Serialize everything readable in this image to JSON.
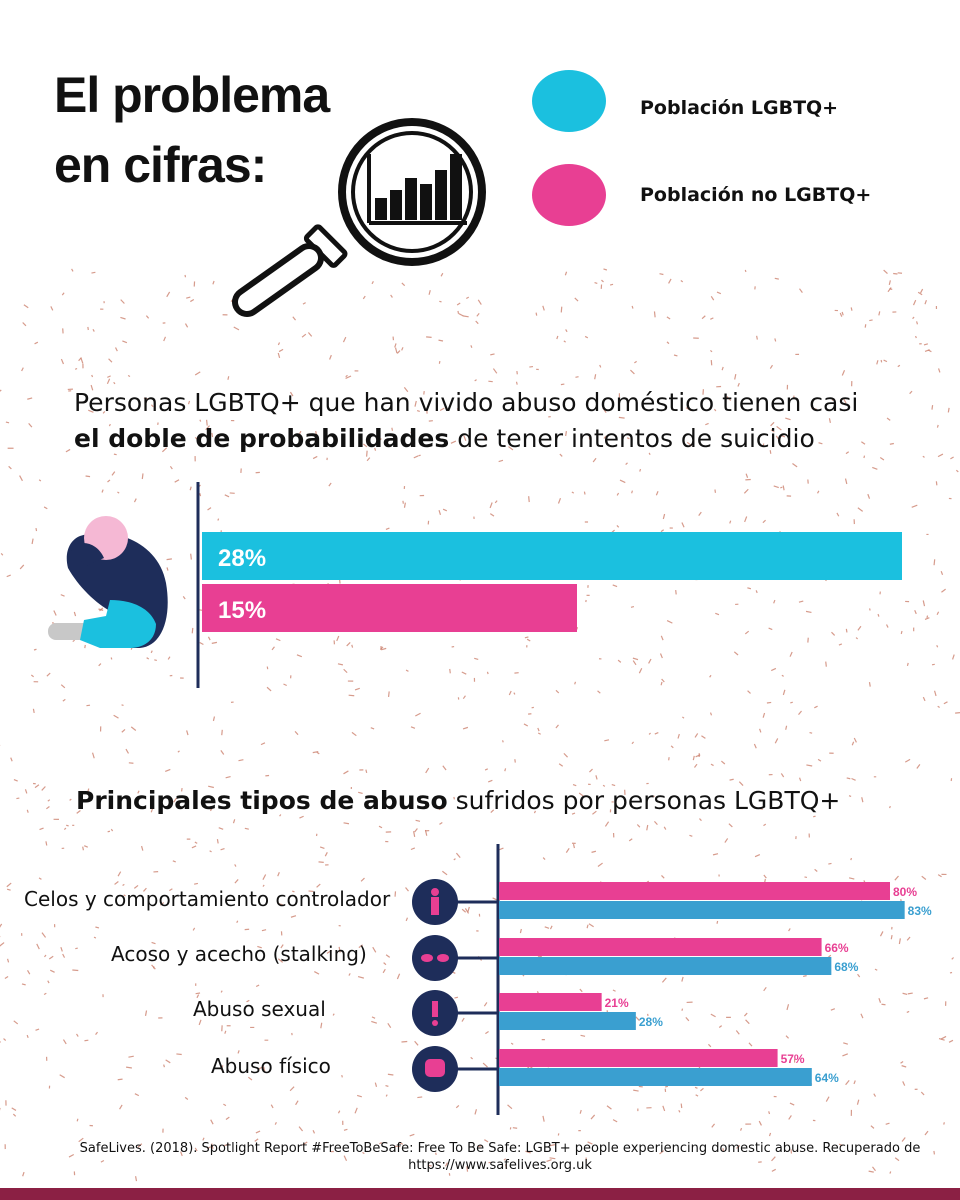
{
  "header": {
    "title_line1": "El problema",
    "title_line2": "en cifras:",
    "icon": "magnifier-bar-chart-icon"
  },
  "legend": {
    "lgbtq": {
      "label": "Población LGBTQ+",
      "color": "#1bc0df"
    },
    "non_lgbtq": {
      "label": "Población no LGBTQ+",
      "color": "#e83f93"
    }
  },
  "section1": {
    "subtitle_start": "Personas LGBTQ+ que han vivido abuso doméstico tienen casi",
    "subtitle_bold": "el doble de probabilidades",
    "subtitle_end": "de tener intentos de suicidio",
    "icon": "person-sitting-icon"
  },
  "section2": {
    "title_bold": "Principales tipos de abuso",
    "title_rest": "sufridos por personas LGBTQ+"
  },
  "colors": {
    "cyan_big": "#1bc0df",
    "pink": "#e83f93",
    "blue_small": "#3a9fd0",
    "navy": "#1e2d5a",
    "maroon": "#8b2044",
    "speckle": "#c97a66"
  },
  "chart_data": [
    {
      "type": "bar",
      "orientation": "horizontal",
      "title": "",
      "xlim": [
        0,
        28
      ],
      "series": [
        {
          "name": "Población LGBTQ+",
          "values": [
            28
          ],
          "labels": [
            "28%"
          ]
        },
        {
          "name": "Población no LGBTQ+",
          "values": [
            15
          ],
          "labels": [
            "15%"
          ]
        }
      ]
    },
    {
      "type": "bar",
      "orientation": "horizontal",
      "categories": [
        "Celos y comportamiento controlador",
        "Acoso y acecho (stalking)",
        "Abuso sexual",
        "Abuso físico"
      ],
      "category_icons": [
        "person-icon",
        "eyes-icon",
        "exclamation-icon",
        "fist-icon"
      ],
      "xlim": [
        0,
        85
      ],
      "series": [
        {
          "name": "Población no LGBTQ+",
          "values": [
            80,
            66,
            21,
            57
          ],
          "labels": [
            "80%",
            "66%",
            "21%",
            "57%"
          ]
        },
        {
          "name": "Población LGBTQ+",
          "values": [
            83,
            68,
            28,
            64
          ],
          "labels": [
            "83%",
            "68%",
            "28%",
            "64%"
          ]
        }
      ]
    }
  ],
  "footer": {
    "line1": "SafeLives. (2018).  Spotlight Report #FreeToBeSafe: Free To Be Safe: LGBT+ people experiencing domestic abuse.  Recuperado de",
    "line2": "https://www.safelives.org.uk"
  }
}
